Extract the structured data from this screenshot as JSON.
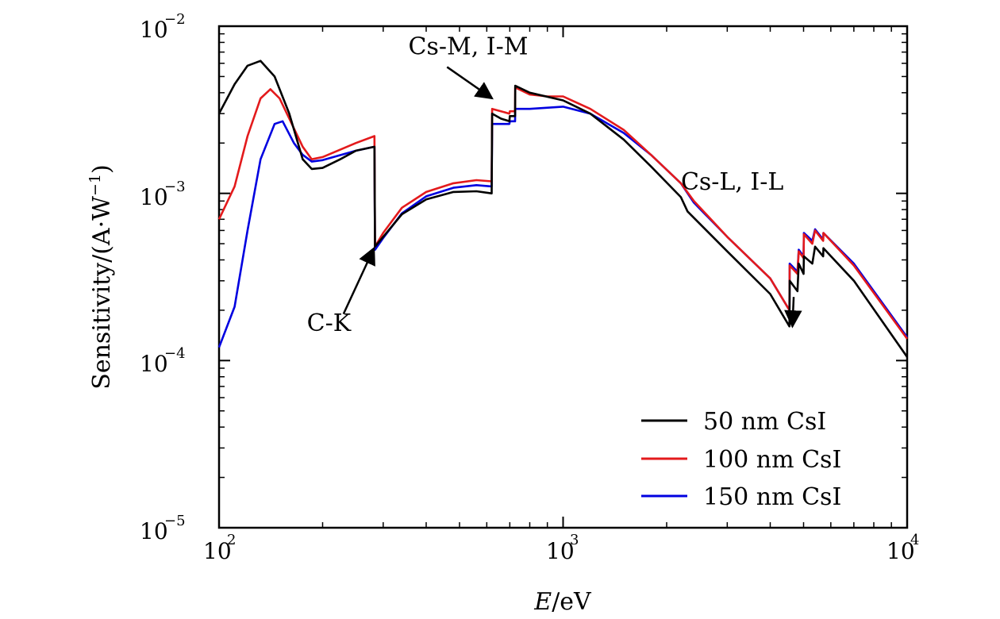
{
  "chart_data": {
    "type": "line",
    "xscale": "log",
    "yscale": "log",
    "xlim": [
      100,
      10000
    ],
    "ylim": [
      1e-05,
      0.01
    ],
    "xlabel_italic": "E",
    "xlabel_unit": "/eV",
    "ylabel": "Sensitivity/(A·W",
    "ylabel_exp": "−1",
    "ylabel_close": ")",
    "xticks": [
      {
        "value": 100,
        "base": "10",
        "exp": "2"
      },
      {
        "value": 1000,
        "base": "10",
        "exp": "3"
      },
      {
        "value": 10000,
        "base": "10",
        "exp": "4"
      }
    ],
    "yticks": [
      {
        "value": 0.01,
        "base": "10",
        "exp": "−2"
      },
      {
        "value": 0.001,
        "base": "10",
        "exp": "−3"
      },
      {
        "value": 0.0001,
        "base": "10",
        "exp": "−4"
      },
      {
        "value": 1e-05,
        "base": "10",
        "exp": "−5"
      }
    ],
    "legend_position": "bottom-right",
    "series": [
      {
        "name": "50 nm CsI",
        "color": "#000000",
        "points": [
          [
            100,
            0.003
          ],
          [
            111,
            0.0045
          ],
          [
            121,
            0.0058
          ],
          [
            132,
            0.0062
          ],
          [
            145,
            0.005
          ],
          [
            160,
            0.003
          ],
          [
            175,
            0.0016
          ],
          [
            186,
            0.0014
          ],
          [
            200,
            0.00142
          ],
          [
            225,
            0.0016
          ],
          [
            250,
            0.0018
          ],
          [
            283,
            0.0019
          ],
          [
            284,
            0.00048
          ],
          [
            300,
            0.00055
          ],
          [
            340,
            0.00075
          ],
          [
            400,
            0.00092
          ],
          [
            480,
            0.00102
          ],
          [
            560,
            0.00103
          ],
          [
            620,
            0.001
          ],
          [
            622,
            0.003
          ],
          [
            660,
            0.0028
          ],
          [
            698,
            0.0027
          ],
          [
            700,
            0.0029
          ],
          [
            725,
            0.0029
          ],
          [
            726,
            0.0044
          ],
          [
            800,
            0.004
          ],
          [
            1000,
            0.0036
          ],
          [
            1200,
            0.003
          ],
          [
            1500,
            0.0021
          ],
          [
            1800,
            0.00145
          ],
          [
            2200,
            0.00095
          ],
          [
            2300,
            0.00078
          ],
          [
            3000,
            0.00045
          ],
          [
            4000,
            0.00025
          ],
          [
            4550,
            0.00016
          ],
          [
            4557,
            0.0003
          ],
          [
            4800,
            0.00026
          ],
          [
            4840,
            0.00038
          ],
          [
            5000,
            0.00033
          ],
          [
            5010,
            0.00042
          ],
          [
            5300,
            0.00038
          ],
          [
            5400,
            0.00048
          ],
          [
            5700,
            0.00042
          ],
          [
            5710,
            0.00047
          ],
          [
            7000,
            0.0003
          ],
          [
            10000,
            0.000105
          ]
        ]
      },
      {
        "name": "100 nm CsI",
        "color": "#e31a1c",
        "points": [
          [
            100,
            0.0007
          ],
          [
            111,
            0.0011
          ],
          [
            121,
            0.0022
          ],
          [
            132,
            0.0037
          ],
          [
            141,
            0.0042
          ],
          [
            150,
            0.0037
          ],
          [
            160,
            0.0028
          ],
          [
            175,
            0.0019
          ],
          [
            186,
            0.0016
          ],
          [
            200,
            0.00165
          ],
          [
            250,
            0.002
          ],
          [
            283,
            0.0022
          ],
          [
            284,
            0.00048
          ],
          [
            300,
            0.00058
          ],
          [
            340,
            0.00082
          ],
          [
            400,
            0.00102
          ],
          [
            480,
            0.00115
          ],
          [
            560,
            0.0012
          ],
          [
            620,
            0.00118
          ],
          [
            622,
            0.0032
          ],
          [
            660,
            0.0031
          ],
          [
            698,
            0.003
          ],
          [
            700,
            0.0031
          ],
          [
            725,
            0.0031
          ],
          [
            726,
            0.0043
          ],
          [
            800,
            0.0039
          ],
          [
            900,
            0.0038
          ],
          [
            1000,
            0.0038
          ],
          [
            1200,
            0.0032
          ],
          [
            1500,
            0.0024
          ],
          [
            1800,
            0.0017
          ],
          [
            2200,
            0.00115
          ],
          [
            2400,
            0.0009
          ],
          [
            3000,
            0.00055
          ],
          [
            4000,
            0.00031
          ],
          [
            4550,
            0.0002
          ],
          [
            4557,
            0.00037
          ],
          [
            4800,
            0.00033
          ],
          [
            4840,
            0.00045
          ],
          [
            5000,
            0.00041
          ],
          [
            5010,
            0.00057
          ],
          [
            5300,
            0.0005
          ],
          [
            5400,
            0.0006
          ],
          [
            5700,
            0.00052
          ],
          [
            5710,
            0.00058
          ],
          [
            7000,
            0.00037
          ],
          [
            10000,
            0.000135
          ]
        ]
      },
      {
        "name": "150 nm CsI",
        "color": "#0000e0",
        "points": [
          [
            100,
            0.00012
          ],
          [
            111,
            0.00021
          ],
          [
            121,
            0.0006
          ],
          [
            132,
            0.0016
          ],
          [
            145,
            0.0026
          ],
          [
            153,
            0.0027
          ],
          [
            165,
            0.002
          ],
          [
            175,
            0.0017
          ],
          [
            186,
            0.00155
          ],
          [
            200,
            0.00158
          ],
          [
            250,
            0.0018
          ],
          [
            283,
            0.0019
          ],
          [
            284,
            0.00046
          ],
          [
            300,
            0.00054
          ],
          [
            340,
            0.00076
          ],
          [
            400,
            0.00096
          ],
          [
            480,
            0.00108
          ],
          [
            560,
            0.00112
          ],
          [
            620,
            0.0011
          ],
          [
            622,
            0.0026
          ],
          [
            660,
            0.0026
          ],
          [
            698,
            0.0026
          ],
          [
            700,
            0.0027
          ],
          [
            725,
            0.0027
          ],
          [
            726,
            0.0032
          ],
          [
            800,
            0.0032
          ],
          [
            1000,
            0.0033
          ],
          [
            1200,
            0.003
          ],
          [
            1500,
            0.0023
          ],
          [
            1800,
            0.0017
          ],
          [
            2200,
            0.00115
          ],
          [
            2400,
            0.00088
          ],
          [
            3000,
            0.00055
          ],
          [
            4000,
            0.00031
          ],
          [
            4550,
            0.0002
          ],
          [
            4557,
            0.00038
          ],
          [
            4800,
            0.00034
          ],
          [
            4840,
            0.00046
          ],
          [
            5000,
            0.00042
          ],
          [
            5010,
            0.00058
          ],
          [
            5300,
            0.00052
          ],
          [
            5400,
            0.00061
          ],
          [
            5700,
            0.00053
          ],
          [
            5710,
            0.00058
          ],
          [
            7000,
            0.00038
          ],
          [
            10000,
            0.000138
          ]
        ]
      }
    ],
    "annotations": [
      {
        "text": "Cs-M, I-M",
        "x": 355,
        "y": 0.0068,
        "arrow_from": [
          460,
          0.0057
        ],
        "arrow_to": [
          622,
          0.0037
        ]
      },
      {
        "text": "C-K",
        "x": 180,
        "y": 0.00015,
        "arrow_from": [
          230,
          0.00019
        ],
        "arrow_to": [
          282,
          0.00047
        ]
      },
      {
        "text": "Cs-L, I-L",
        "x": 2200,
        "y": 0.00105,
        "arrow_from": null,
        "arrow_to": null
      }
    ]
  },
  "annotation_small_arrow": {
    "from": [
      4680,
      0.00024
    ],
    "to": [
      4640,
      0.00016
    ]
  }
}
